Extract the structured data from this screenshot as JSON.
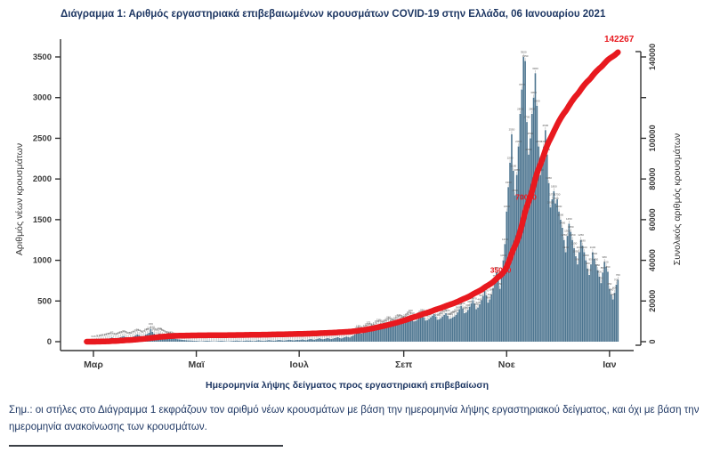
{
  "page": {
    "title": "Διάγραμμα 1: Αριθμός εργαστηριακά επιβεβαιωμένων κρουσμάτων COVID-19 στην Ελλάδα, 06 Ιανουαρίου 2021",
    "footnote": "Σημ.: οι στήλες στο Διάγραμμα 1 εκφράζουν τον αριθμό νέων κρουσμάτων με βάση την ημερομηνία λήψης εργαστηριακού δείγματος, και όχι με βάση την ημερομηνία ανακοίνωσης των κρουσμάτων."
  },
  "chart_data": {
    "type": "bar",
    "subtype": "daily-bars-with-cumulative-line",
    "title": "Διάγραμμα 1: Αριθμός εργαστηριακά επιβεβαιωμένων κρουσμάτων COVID-19 στην Ελλάδα, 06 Ιανουαρίου 2021",
    "xlabel": "Ημερομηνία λήψης δείγματος προς εργαστηριακή επιβεβαίωση",
    "ylabel_left": "Αριθμός νέων κρουσμάτων",
    "ylabel_right": "Συνολικός αριθμός κρουσμάτων",
    "y_left_ticks": [
      0,
      500,
      1000,
      1500,
      2000,
      2500,
      3000,
      3500
    ],
    "y_left_max": 3500,
    "y_right_ticks": [
      {
        "value": 0,
        "label": "0"
      },
      {
        "value": 20000,
        "label": "20000"
      },
      {
        "value": 40000,
        "label": "40000"
      },
      {
        "value": 60000,
        "label": "60000"
      },
      {
        "value": 80000,
        "label": "80000"
      },
      {
        "value": 100000,
        "label": "100000"
      },
      {
        "value": 120000,
        "label": ""
      },
      {
        "value": 140000,
        "label": "140000"
      }
    ],
    "y_right_max": 140000,
    "x_ticks": [
      {
        "label": "Μαρ",
        "day": 4
      },
      {
        "label": "Μαϊ",
        "day": 65
      },
      {
        "label": "Ιουλ",
        "day": 126
      },
      {
        "label": "Σεπ",
        "day": 188
      },
      {
        "label": "Νοε",
        "day": 249
      },
      {
        "label": "Ιαν",
        "day": 310
      }
    ],
    "daily_new_cases": [
      1,
      2,
      1,
      3,
      4,
      6,
      9,
      12,
      18,
      24,
      21,
      28,
      33,
      39,
      46,
      52,
      41,
      35,
      40,
      48,
      55,
      62,
      69,
      58,
      47,
      42,
      50,
      57,
      66,
      78,
      90,
      82,
      70,
      62,
      71,
      88,
      95,
      110,
      156,
      120,
      99,
      85,
      90,
      102,
      95,
      80,
      70,
      62,
      55,
      48,
      52,
      45,
      40,
      35,
      30,
      28,
      25,
      22,
      20,
      18,
      16,
      15,
      14,
      12,
      10,
      10,
      8,
      6,
      5,
      7,
      9,
      12,
      10,
      8,
      6,
      5,
      4,
      6,
      8,
      10,
      12,
      9,
      7,
      5,
      4,
      6,
      8,
      10,
      12,
      14,
      11,
      9,
      7,
      10,
      12,
      15,
      12,
      14,
      10,
      8,
      11,
      15,
      18,
      14,
      12,
      10,
      13,
      16,
      20,
      17,
      14,
      12,
      15,
      18,
      22,
      19,
      16,
      14,
      17,
      20,
      24,
      21,
      18,
      16,
      20,
      23,
      20,
      24,
      28,
      22,
      18,
      25,
      30,
      35,
      28,
      24,
      30,
      36,
      42,
      35,
      30,
      34,
      40,
      46,
      38,
      32,
      38,
      44,
      50,
      55,
      45,
      40,
      48,
      55,
      62,
      58,
      52,
      65,
      75,
      90,
      110,
      130,
      120,
      100,
      115,
      135,
      155,
      175,
      160,
      140,
      150,
      170,
      190,
      210,
      195,
      175,
      185,
      200,
      220,
      240,
      225,
      205,
      215,
      230,
      250,
      270,
      255,
      235,
      245,
      260,
      280,
      300,
      320,
      290,
      250,
      255,
      270,
      290,
      310,
      330,
      300,
      260,
      265,
      280,
      300,
      320,
      340,
      310,
      270,
      275,
      290,
      310,
      330,
      350,
      320,
      280,
      285,
      300,
      310,
      330,
      360,
      400,
      440,
      410,
      350,
      360,
      390,
      430,
      470,
      510,
      470,
      400,
      420,
      460,
      510,
      560,
      620,
      570,
      480,
      520,
      580,
      660,
      750,
      850,
      780,
      650,
      800,
      1000,
      1200,
      1600,
      1900,
      2200,
      2550,
      2100,
      1800,
      2050,
      2400,
      2800,
      3100,
      3500,
      3450,
      2700,
      2300,
      2500,
      2800,
      3000,
      3300,
      2900,
      2400,
      2050,
      2200,
      2400,
      2600,
      2300,
      1950,
      1650,
      1750,
      1850,
      1700,
      1750,
      1600,
      1500,
      1400,
      1250,
      1100,
      1300,
      1450,
      1350,
      1250,
      1150,
      1050,
      950,
      1100,
      1250,
      1180,
      1100,
      1000,
      900,
      820,
      950,
      1100,
      1020,
      950,
      880,
      800,
      720,
      850,
      980,
      920,
      860,
      650,
      580,
      520,
      600,
      700,
      760
    ],
    "cumulative_final": 142267,
    "final_label": "142267",
    "milestone_labels": [
      {
        "value": 35000,
        "label": "35000"
      },
      {
        "value": 70000,
        "label": "70000"
      }
    ],
    "colors": {
      "bar": "#4d7590",
      "line": "#e8191f",
      "title": "#1f3864",
      "axis": "#333333",
      "bar_label": "#555555"
    }
  }
}
